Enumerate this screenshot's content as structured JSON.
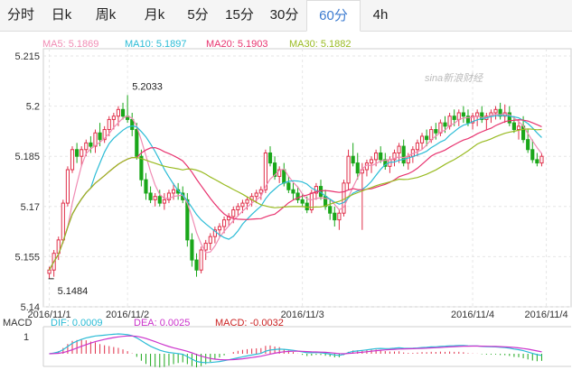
{
  "tabs": [
    {
      "label": "分时",
      "active": false
    },
    {
      "label": "日k",
      "active": false
    },
    {
      "label": "周k",
      "active": false
    },
    {
      "label": "月k",
      "active": false
    },
    {
      "label": "5分",
      "active": false
    },
    {
      "label": "15分",
      "active": false
    },
    {
      "label": "30分",
      "active": false
    },
    {
      "label": "60分",
      "active": true
    },
    {
      "label": "4h",
      "active": false
    }
  ],
  "watermark": "sina新浪财经",
  "colors": {
    "up": "#e0304a",
    "down": "#1aa71a",
    "ma5": "#f08cb4",
    "ma10": "#2bbcd6",
    "ma20": "#e8336f",
    "ma30": "#99bb22",
    "dif": "#2bbcd6",
    "dea": "#cc33cc",
    "macd": "#cc2222",
    "active_tab": "#3c7bd0"
  },
  "chart_data": [
    {
      "type": "candlestick",
      "legend": [
        {
          "label": "MA5: 5.1869",
          "color": "#f08cb4"
        },
        {
          "label": "MA10: 5.1897",
          "color": "#2bbcd6"
        },
        {
          "label": "MA20: 5.1903",
          "color": "#e8336f"
        },
        {
          "label": "MA30: 5.1882",
          "color": "#99bb22"
        }
      ],
      "ylim": [
        5.14,
        5.215
      ],
      "yticks": [
        "5.215",
        "5.2",
        "5.185",
        "5.17",
        "5.155",
        "5.14"
      ],
      "xticks": [
        {
          "label": "2016/11/1",
          "index": 0
        },
        {
          "label": "2016/11/2",
          "index": 17
        },
        {
          "label": "2016/11/3",
          "index": 55
        },
        {
          "label": "2016/11/4",
          "index": 92
        },
        {
          "label": "2016/11/4",
          "index": 108
        }
      ],
      "annotations": [
        {
          "text": "5.2033",
          "index": 18,
          "value": 5.2033,
          "pos": "above"
        },
        {
          "text": "5.1484",
          "index": 1,
          "value": 5.1484,
          "pos": "below"
        }
      ],
      "ohlc": [
        [
          5.15,
          5.152,
          5.1484,
          5.151
        ],
        [
          5.151,
          5.157,
          5.149,
          5.156
        ],
        [
          5.156,
          5.161,
          5.154,
          5.16
        ],
        [
          5.16,
          5.172,
          5.159,
          5.171
        ],
        [
          5.171,
          5.182,
          5.17,
          5.181
        ],
        [
          5.181,
          5.188,
          5.18,
          5.187
        ],
        [
          5.187,
          5.189,
          5.183,
          5.185
        ],
        [
          5.185,
          5.188,
          5.182,
          5.187
        ],
        [
          5.187,
          5.19,
          5.185,
          5.189
        ],
        [
          5.189,
          5.191,
          5.186,
          5.188
        ],
        [
          5.188,
          5.193,
          5.186,
          5.192
        ],
        [
          5.192,
          5.195,
          5.188,
          5.19
        ],
        [
          5.19,
          5.194,
          5.189,
          5.193
        ],
        [
          5.193,
          5.197,
          5.191,
          5.196
        ],
        [
          5.196,
          5.198,
          5.193,
          5.197
        ],
        [
          5.197,
          5.2,
          5.194,
          5.199
        ],
        [
          5.199,
          5.201,
          5.196,
          5.197
        ],
        [
          5.197,
          5.2033,
          5.195,
          5.196
        ],
        [
          5.196,
          5.198,
          5.191,
          5.193
        ],
        [
          5.193,
          5.195,
          5.184,
          5.185
        ],
        [
          5.185,
          5.187,
          5.176,
          5.178
        ],
        [
          5.178,
          5.18,
          5.172,
          5.174
        ],
        [
          5.174,
          5.176,
          5.171,
          5.172
        ],
        [
          5.172,
          5.174,
          5.17,
          5.173
        ],
        [
          5.173,
          5.175,
          5.17,
          5.171
        ],
        [
          5.171,
          5.174,
          5.169,
          5.172
        ],
        [
          5.172,
          5.175,
          5.171,
          5.174
        ],
        [
          5.174,
          5.177,
          5.172,
          5.175
        ],
        [
          5.175,
          5.177,
          5.172,
          5.174
        ],
        [
          5.174,
          5.176,
          5.171,
          5.172
        ],
        [
          5.172,
          5.174,
          5.158,
          5.16
        ],
        [
          5.16,
          5.162,
          5.152,
          5.154
        ],
        [
          5.154,
          5.156,
          5.149,
          5.151
        ],
        [
          5.151,
          5.158,
          5.15,
          5.157
        ],
        [
          5.157,
          5.16,
          5.154,
          5.159
        ],
        [
          5.159,
          5.162,
          5.157,
          5.161
        ],
        [
          5.161,
          5.164,
          5.159,
          5.163
        ],
        [
          5.163,
          5.165,
          5.161,
          5.164
        ],
        [
          5.164,
          5.167,
          5.162,
          5.166
        ],
        [
          5.166,
          5.168,
          5.164,
          5.167
        ],
        [
          5.167,
          5.17,
          5.165,
          5.169
        ],
        [
          5.169,
          5.171,
          5.167,
          5.17
        ],
        [
          5.17,
          5.172,
          5.168,
          5.171
        ],
        [
          5.171,
          5.173,
          5.169,
          5.172
        ],
        [
          5.172,
          5.174,
          5.17,
          5.173
        ],
        [
          5.173,
          5.175,
          5.171,
          5.174
        ],
        [
          5.174,
          5.176,
          5.172,
          5.175
        ],
        [
          5.175,
          5.187,
          5.174,
          5.186
        ],
        [
          5.186,
          5.188,
          5.182,
          5.183
        ],
        [
          5.183,
          5.185,
          5.178,
          5.179
        ],
        [
          5.179,
          5.182,
          5.177,
          5.181
        ],
        [
          5.181,
          5.183,
          5.176,
          5.177
        ],
        [
          5.177,
          5.179,
          5.174,
          5.175
        ],
        [
          5.175,
          5.177,
          5.172,
          5.174
        ],
        [
          5.174,
          5.176,
          5.171,
          5.172
        ],
        [
          5.172,
          5.174,
          5.17,
          5.171
        ],
        [
          5.171,
          5.173,
          5.168,
          5.169
        ],
        [
          5.169,
          5.175,
          5.168,
          5.174
        ],
        [
          5.174,
          5.177,
          5.172,
          5.176
        ],
        [
          5.176,
          5.178,
          5.172,
          5.173
        ],
        [
          5.173,
          5.175,
          5.169,
          5.17
        ],
        [
          5.17,
          5.172,
          5.166,
          5.168
        ],
        [
          5.168,
          5.17,
          5.164,
          5.166
        ],
        [
          5.166,
          5.169,
          5.163,
          5.168
        ],
        [
          5.168,
          5.178,
          5.167,
          5.177
        ],
        [
          5.177,
          5.187,
          5.175,
          5.185
        ],
        [
          5.185,
          5.189,
          5.182,
          5.183
        ],
        [
          5.183,
          5.186,
          5.178,
          5.18
        ],
        [
          5.18,
          5.183,
          5.163,
          5.181
        ],
        [
          5.181,
          5.184,
          5.179,
          5.183
        ],
        [
          5.183,
          5.185,
          5.18,
          5.184
        ],
        [
          5.184,
          5.187,
          5.182,
          5.186
        ],
        [
          5.186,
          5.188,
          5.183,
          5.184
        ],
        [
          5.184,
          5.186,
          5.181,
          5.182
        ],
        [
          5.182,
          5.185,
          5.18,
          5.184
        ],
        [
          5.184,
          5.187,
          5.182,
          5.186
        ],
        [
          5.186,
          5.189,
          5.183,
          5.188
        ],
        [
          5.188,
          5.19,
          5.182,
          5.183
        ],
        [
          5.183,
          5.186,
          5.181,
          5.185
        ],
        [
          5.185,
          5.188,
          5.183,
          5.187
        ],
        [
          5.187,
          5.19,
          5.185,
          5.189
        ],
        [
          5.189,
          5.192,
          5.187,
          5.191
        ],
        [
          5.191,
          5.193,
          5.188,
          5.19
        ],
        [
          5.19,
          5.194,
          5.189,
          5.193
        ],
        [
          5.193,
          5.195,
          5.19,
          5.192
        ],
        [
          5.192,
          5.196,
          5.191,
          5.195
        ],
        [
          5.195,
          5.197,
          5.192,
          5.194
        ],
        [
          5.194,
          5.198,
          5.193,
          5.197
        ],
        [
          5.197,
          5.199,
          5.194,
          5.196
        ],
        [
          5.196,
          5.199,
          5.194,
          5.198
        ],
        [
          5.198,
          5.2,
          5.195,
          5.197
        ],
        [
          5.197,
          5.199,
          5.194,
          5.195
        ],
        [
          5.195,
          5.198,
          5.193,
          5.197
        ],
        [
          5.197,
          5.199,
          5.194,
          5.198
        ],
        [
          5.198,
          5.2,
          5.195,
          5.196
        ],
        [
          5.196,
          5.198,
          5.193,
          5.197
        ],
        [
          5.197,
          5.199,
          5.195,
          5.198
        ],
        [
          5.198,
          5.2,
          5.196,
          5.199
        ],
        [
          5.199,
          5.201,
          5.196,
          5.197
        ],
        [
          5.197,
          5.2005,
          5.195,
          5.198
        ],
        [
          5.198,
          5.2,
          5.194,
          5.195
        ],
        [
          5.195,
          5.197,
          5.192,
          5.193
        ],
        [
          5.193,
          5.196,
          5.19,
          5.194
        ],
        [
          5.194,
          5.197,
          5.189,
          5.19
        ],
        [
          5.19,
          5.193,
          5.186,
          5.187
        ],
        [
          5.187,
          5.19,
          5.183,
          5.184
        ],
        [
          5.184,
          5.186,
          5.182,
          5.183
        ],
        [
          5.183,
          5.186,
          5.182,
          5.185
        ]
      ]
    },
    {
      "type": "macd",
      "title": "MACD",
      "legend": [
        {
          "label": "DIF: 0.0009",
          "color": "#2bbcd6"
        },
        {
          "label": "DEA: 0.0025",
          "color": "#cc33cc"
        },
        {
          "label": "MACD: -0.0032",
          "color": "#cc2222"
        }
      ],
      "ytick": "1"
    }
  ]
}
